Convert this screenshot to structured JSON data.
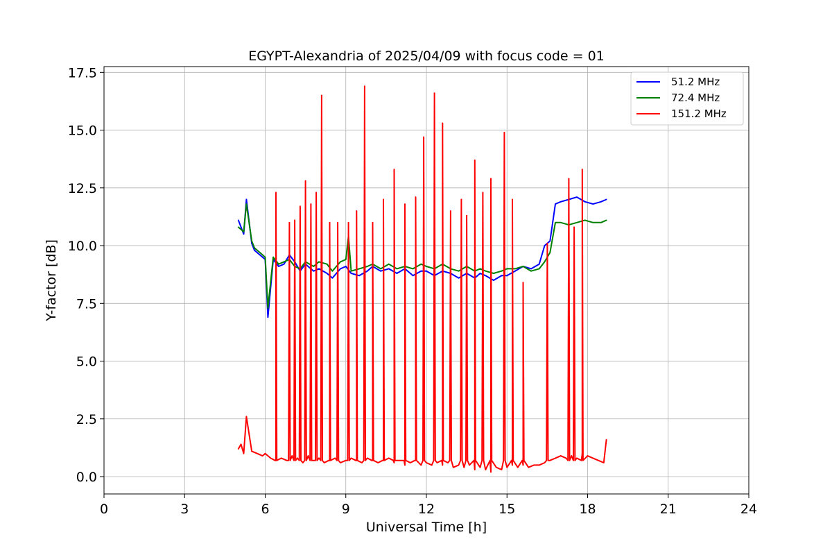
{
  "chart_data": {
    "type": "line",
    "title": "EGYPT-Alexandria of 2025/04/09 with focus code = 01",
    "xlabel": "Universal Time [h]",
    "ylabel": "Y-factor [dB]",
    "xlim": [
      0,
      24
    ],
    "ylim": [
      -0.75,
      17.75
    ],
    "xticks": [
      0,
      3,
      6,
      9,
      12,
      15,
      18,
      21,
      24
    ],
    "yticks": [
      0.0,
      2.5,
      5.0,
      7.5,
      10.0,
      12.5,
      15.0,
      17.5
    ],
    "xtick_labels": [
      "0",
      "3",
      "6",
      "9",
      "12",
      "15",
      "18",
      "21",
      "24"
    ],
    "ytick_labels": [
      "0.0",
      "2.5",
      "5.0",
      "7.5",
      "10.0",
      "12.5",
      "15.0",
      "17.5"
    ],
    "grid": true,
    "legend_position": "top-right",
    "series": [
      {
        "name": "51.2 MHz",
        "color": "#0000ff",
        "x": [
          5.0,
          5.2,
          5.3,
          5.5,
          5.6,
          5.8,
          6.0,
          6.1,
          6.3,
          6.5,
          6.7,
          6.9,
          7.1,
          7.3,
          7.5,
          7.8,
          8.0,
          8.3,
          8.5,
          8.8,
          9.0,
          9.2,
          9.5,
          9.8,
          10.0,
          10.3,
          10.6,
          10.9,
          11.2,
          11.5,
          11.8,
          12.0,
          12.3,
          12.6,
          12.9,
          13.2,
          13.5,
          13.8,
          14.0,
          14.2,
          14.5,
          14.8,
          15.0,
          15.3,
          15.6,
          15.9,
          16.2,
          16.4,
          16.6,
          16.8,
          17.0,
          17.3,
          17.6,
          17.9,
          18.2,
          18.5,
          18.7
        ],
        "y": [
          11.1,
          10.5,
          12.0,
          10.1,
          9.8,
          9.6,
          9.4,
          6.9,
          9.4,
          9.1,
          9.2,
          9.6,
          9.3,
          8.9,
          9.2,
          8.9,
          9.0,
          8.8,
          8.6,
          9.0,
          9.1,
          8.8,
          8.7,
          8.9,
          9.1,
          8.9,
          9.0,
          8.8,
          9.0,
          8.7,
          8.9,
          8.9,
          8.7,
          8.9,
          8.8,
          8.6,
          8.8,
          8.6,
          8.8,
          8.7,
          8.5,
          8.7,
          8.7,
          8.9,
          9.1,
          9.0,
          9.2,
          10.0,
          10.2,
          11.8,
          11.9,
          12.0,
          12.1,
          11.9,
          11.8,
          11.9,
          12.0
        ]
      },
      {
        "name": "72.4 MHz",
        "color": "#008000",
        "x": [
          5.0,
          5.2,
          5.3,
          5.5,
          5.6,
          5.8,
          6.0,
          6.1,
          6.3,
          6.5,
          6.7,
          6.9,
          7.1,
          7.3,
          7.5,
          7.8,
          8.0,
          8.3,
          8.5,
          8.8,
          9.0,
          9.1,
          9.2,
          9.5,
          9.8,
          10.0,
          10.3,
          10.6,
          10.9,
          11.2,
          11.5,
          11.8,
          12.0,
          12.3,
          12.6,
          12.9,
          13.2,
          13.5,
          13.8,
          14.0,
          14.2,
          14.5,
          14.8,
          15.0,
          15.3,
          15.6,
          15.9,
          16.2,
          16.4,
          16.6,
          16.8,
          17.0,
          17.3,
          17.6,
          17.9,
          18.2,
          18.5,
          18.7
        ],
        "y": [
          10.8,
          10.6,
          11.8,
          10.2,
          9.9,
          9.7,
          9.5,
          7.3,
          9.5,
          9.2,
          9.3,
          9.4,
          9.1,
          9.0,
          9.3,
          9.1,
          9.3,
          9.2,
          8.9,
          9.3,
          9.4,
          10.4,
          8.9,
          9.0,
          9.1,
          9.2,
          9.0,
          9.2,
          9.0,
          9.1,
          9.0,
          9.2,
          9.1,
          9.0,
          9.2,
          9.0,
          8.9,
          9.1,
          8.9,
          9.0,
          8.9,
          8.8,
          8.9,
          9.0,
          9.0,
          9.1,
          8.9,
          9.0,
          9.3,
          9.7,
          11.0,
          11.0,
          10.9,
          11.0,
          11.1,
          11.0,
          11.0,
          11.1
        ]
      },
      {
        "name": "151.2 MHz",
        "color": "#ff0000",
        "x": [
          5.0,
          5.1,
          5.2,
          5.3,
          5.5,
          5.7,
          5.9,
          6.0,
          6.2,
          6.4,
          6.6,
          6.8,
          7.0,
          7.2,
          7.4,
          7.6,
          7.8,
          8.0,
          8.2,
          8.4,
          8.6,
          8.8,
          9.0,
          9.2,
          9.4,
          9.6,
          9.8,
          10.0,
          10.2,
          10.4,
          10.6,
          10.8,
          11.0,
          11.2,
          11.4,
          11.6,
          11.8,
          12.0,
          12.2,
          12.4,
          12.6,
          12.8,
          13.0,
          13.2,
          13.4,
          13.6,
          13.8,
          14.0,
          14.2,
          14.4,
          14.6,
          14.8,
          15.0,
          15.2,
          15.4,
          15.6,
          15.8,
          16.0,
          16.2,
          16.4,
          16.6,
          16.8,
          17.0,
          17.2,
          17.4,
          17.6,
          17.8,
          18.0,
          18.2,
          18.4,
          18.6,
          18.7
        ],
        "y": [
          1.2,
          1.4,
          1.0,
          2.6,
          1.1,
          1.0,
          0.9,
          1.0,
          0.8,
          0.7,
          0.8,
          0.7,
          0.9,
          0.8,
          0.6,
          0.9,
          0.7,
          0.8,
          0.6,
          0.7,
          0.8,
          0.6,
          0.7,
          0.8,
          0.7,
          0.6,
          0.8,
          0.7,
          0.6,
          0.7,
          0.8,
          0.6,
          0.7,
          0.5,
          0.6,
          0.7,
          0.5,
          0.6,
          0.5,
          0.6,
          0.5,
          0.6,
          0.4,
          0.5,
          0.4,
          0.5,
          0.3,
          0.4,
          0.3,
          0.2,
          0.4,
          0.3,
          0.4,
          0.5,
          0.4,
          0.5,
          0.4,
          0.5,
          0.5,
          0.6,
          0.7,
          0.8,
          0.9,
          0.8,
          0.9,
          0.8,
          1.0,
          0.9,
          0.8,
          0.7,
          0.6,
          1.6
        ],
        "spikes": [
          {
            "x": 6.4,
            "y": 12.3
          },
          {
            "x": 6.9,
            "y": 11.0
          },
          {
            "x": 7.1,
            "y": 11.1
          },
          {
            "x": 7.3,
            "y": 11.7
          },
          {
            "x": 7.5,
            "y": 12.8
          },
          {
            "x": 7.7,
            "y": 11.8
          },
          {
            "x": 7.9,
            "y": 12.3
          },
          {
            "x": 8.1,
            "y": 16.5
          },
          {
            "x": 8.4,
            "y": 11.0
          },
          {
            "x": 8.7,
            "y": 11.0
          },
          {
            "x": 9.1,
            "y": 11.0
          },
          {
            "x": 9.4,
            "y": 11.5
          },
          {
            "x": 9.7,
            "y": 16.9
          },
          {
            "x": 10.0,
            "y": 11.0
          },
          {
            "x": 10.4,
            "y": 12.0
          },
          {
            "x": 10.8,
            "y": 13.3
          },
          {
            "x": 11.2,
            "y": 11.8
          },
          {
            "x": 11.6,
            "y": 12.1
          },
          {
            "x": 11.9,
            "y": 14.7
          },
          {
            "x": 12.3,
            "y": 16.6
          },
          {
            "x": 12.6,
            "y": 15.3
          },
          {
            "x": 12.9,
            "y": 11.5
          },
          {
            "x": 13.3,
            "y": 12.0
          },
          {
            "x": 13.5,
            "y": 11.3
          },
          {
            "x": 13.8,
            "y": 13.7
          },
          {
            "x": 14.1,
            "y": 12.3
          },
          {
            "x": 14.4,
            "y": 12.9
          },
          {
            "x": 14.9,
            "y": 14.9
          },
          {
            "x": 15.2,
            "y": 12.0
          },
          {
            "x": 15.6,
            "y": 8.4
          },
          {
            "x": 16.5,
            "y": 10.1
          },
          {
            "x": 17.3,
            "y": 12.9
          },
          {
            "x": 17.5,
            "y": 10.8
          },
          {
            "x": 17.8,
            "y": 13.3
          }
        ]
      }
    ]
  }
}
